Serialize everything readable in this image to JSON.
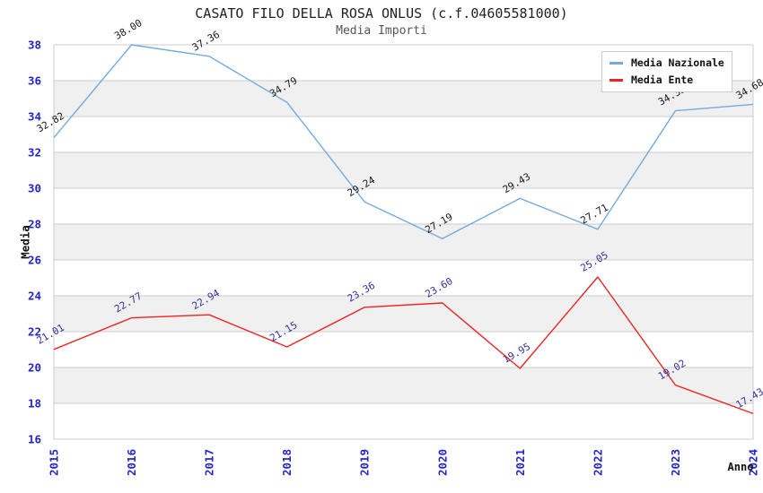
{
  "title": "CASATO FILO DELLA ROSA ONLUS (c.f.04605581000)",
  "subtitle": "Media Importi",
  "axes": {
    "x_title": "Anno",
    "y_title": "Media",
    "y_ticks": [
      16,
      18,
      20,
      22,
      24,
      26,
      28,
      30,
      32,
      34,
      36,
      38
    ],
    "x_ticks": [
      "2015",
      "2016",
      "2017",
      "2018",
      "2019",
      "2020",
      "2021",
      "2022",
      "2023",
      "2024"
    ]
  },
  "legend": {
    "items": [
      {
        "label": "Media Nazionale",
        "color": "#74aadf"
      },
      {
        "label": "Media Ente",
        "color": "#ee2222"
      }
    ]
  },
  "colors": {
    "grid": "#cccccc",
    "band_gray": "#f0f0f0",
    "band_white": "#ffffff",
    "tick_text": "#2525cc",
    "title_text": "#222222",
    "subtitle_text": "#555555"
  },
  "chart_data": {
    "type": "line",
    "title": "CASATO FILO DELLA ROSA ONLUS (c.f.04605581000)",
    "subtitle": "Media Importi",
    "xlabel": "Anno",
    "ylabel": "Media",
    "x": [
      "2015",
      "2016",
      "2017",
      "2018",
      "2019",
      "2020",
      "2021",
      "2022",
      "2023",
      "2024"
    ],
    "series": [
      {
        "name": "Media Nazionale",
        "color": "#74aadf",
        "label_color": "#1a1a1a",
        "values": [
          32.82,
          38.0,
          37.36,
          34.79,
          29.24,
          27.19,
          29.43,
          27.71,
          34.32,
          34.68
        ]
      },
      {
        "name": "Media Ente",
        "color": "#ee2222",
        "label_color": "#333399",
        "values": [
          21.01,
          22.77,
          22.94,
          21.15,
          23.36,
          23.6,
          19.95,
          25.05,
          19.02,
          17.43
        ]
      }
    ],
    "ylim": [
      16,
      38
    ],
    "ytick_step": 2,
    "grid": "horizontal",
    "band_colors": [
      "#ffffff",
      "#f0f0f0"
    ],
    "legend_position": "top-right",
    "data_label_rotation": -30,
    "x_tick_rotation": -90
  }
}
